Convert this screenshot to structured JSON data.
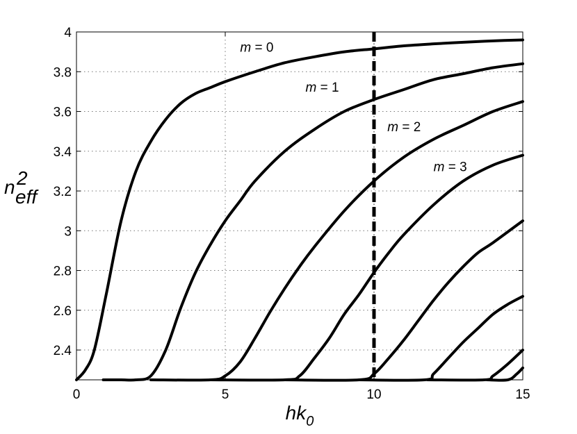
{
  "chart_data": {
    "type": "line",
    "xlabel": {
      "main": "hk",
      "sub": "0"
    },
    "ylabel": {
      "main": "n",
      "sup": "2",
      "sub": "eff"
    },
    "xlim": [
      0,
      15
    ],
    "ylim": [
      2.25,
      4.0
    ],
    "xticks": [
      0,
      5,
      10,
      15
    ],
    "yticks": [
      2.4,
      2.6,
      2.8,
      3.0,
      3.2,
      3.4,
      3.6,
      3.8,
      4.0
    ],
    "xtick_labels": [
      "0",
      "5",
      "10",
      "15"
    ],
    "ytick_labels": [
      "2.4",
      "2.6",
      "2.8",
      "3",
      "3.2",
      "3.4",
      "3.6",
      "3.8",
      "4"
    ],
    "grid": true,
    "grid_lines_x": [
      5
    ],
    "grid_lines_y": [
      2.4,
      2.6,
      2.8,
      3.0,
      3.2,
      3.4,
      3.6,
      3.8
    ],
    "vertical_marker": {
      "x": 10,
      "style": "dashed"
    },
    "series": [
      {
        "name": "m = 0",
        "x": [
          0.0,
          0.3,
          0.6,
          1.0,
          1.5,
          2.0,
          2.5,
          3.0,
          3.5,
          4.0,
          4.5,
          5.0,
          6.0,
          7.0,
          8.0,
          9.0,
          10.0,
          11.0,
          12.0,
          13.0,
          14.0,
          15.0
        ],
        "y": [
          2.25,
          2.3,
          2.4,
          2.68,
          3.05,
          3.3,
          3.45,
          3.56,
          3.64,
          3.69,
          3.72,
          3.75,
          3.8,
          3.845,
          3.875,
          3.9,
          3.915,
          3.93,
          3.94,
          3.948,
          3.955,
          3.96
        ]
      },
      {
        "name": "m = 1",
        "x": [
          0.9,
          1.5,
          2.0,
          2.5,
          3.0,
          3.5,
          4.0,
          4.5,
          5.0,
          5.5,
          6.0,
          7.0,
          8.0,
          9.0,
          10.0,
          11.0,
          12.0,
          13.0,
          14.0,
          15.0
        ],
        "y": [
          2.25,
          2.25,
          2.25,
          2.27,
          2.4,
          2.61,
          2.79,
          2.93,
          3.05,
          3.15,
          3.25,
          3.4,
          3.51,
          3.6,
          3.66,
          3.71,
          3.76,
          3.79,
          3.82,
          3.84
        ]
      },
      {
        "name": "m = 2",
        "x": [
          2.5,
          4.5,
          5.0,
          5.5,
          6.0,
          6.5,
          7.0,
          7.5,
          8.0,
          9.0,
          10.0,
          11.0,
          12.0,
          13.0,
          14.0,
          15.0
        ],
        "y": [
          2.25,
          2.25,
          2.27,
          2.34,
          2.46,
          2.59,
          2.71,
          2.82,
          2.92,
          3.1,
          3.25,
          3.37,
          3.46,
          3.53,
          3.6,
          3.65
        ]
      },
      {
        "name": "m = 3",
        "x": [
          4.5,
          7.0,
          7.5,
          8.0,
          8.5,
          9.0,
          9.5,
          10.0,
          10.5,
          11.0,
          12.0,
          13.0,
          14.0,
          15.0
        ],
        "y": [
          2.25,
          2.25,
          2.27,
          2.36,
          2.46,
          2.58,
          2.68,
          2.79,
          2.89,
          2.98,
          3.13,
          3.25,
          3.33,
          3.38
        ]
      },
      {
        "name": "",
        "x": [
          7.0,
          9.5,
          10.0,
          10.5,
          11.0,
          11.5,
          12.0,
          12.5,
          13.0,
          13.5,
          14.0,
          15.0
        ],
        "y": [
          2.25,
          2.25,
          2.28,
          2.36,
          2.45,
          2.55,
          2.65,
          2.74,
          2.82,
          2.89,
          2.94,
          3.05
        ]
      },
      {
        "name": "",
        "x": [
          9.5,
          11.7,
          12.0,
          12.5,
          13.0,
          13.5,
          14.0,
          14.5,
          15.0
        ],
        "y": [
          2.25,
          2.25,
          2.28,
          2.36,
          2.44,
          2.51,
          2.58,
          2.63,
          2.67
        ]
      },
      {
        "name": "",
        "x": [
          11.8,
          13.7,
          14.0,
          14.5,
          15.0
        ],
        "y": [
          2.25,
          2.25,
          2.27,
          2.33,
          2.4
        ]
      },
      {
        "name": "",
        "x": [
          13.8,
          14.5,
          14.8,
          15.0
        ],
        "y": [
          2.25,
          2.25,
          2.28,
          2.31
        ]
      }
    ],
    "annotations": [
      {
        "text_main": "m",
        "text_rest": " = 0",
        "x": 5.5,
        "y": 3.9,
        "series_index": 0
      },
      {
        "text_main": "m",
        "text_rest": " = 1",
        "x": 7.7,
        "y": 3.7,
        "series_index": 1
      },
      {
        "text_main": "m",
        "text_rest": " = 2",
        "x": 10.45,
        "y": 3.5,
        "series_index": 2
      },
      {
        "text_main": "m",
        "text_rest": " = 3",
        "x": 12.0,
        "y": 3.3,
        "series_index": 3
      }
    ]
  }
}
